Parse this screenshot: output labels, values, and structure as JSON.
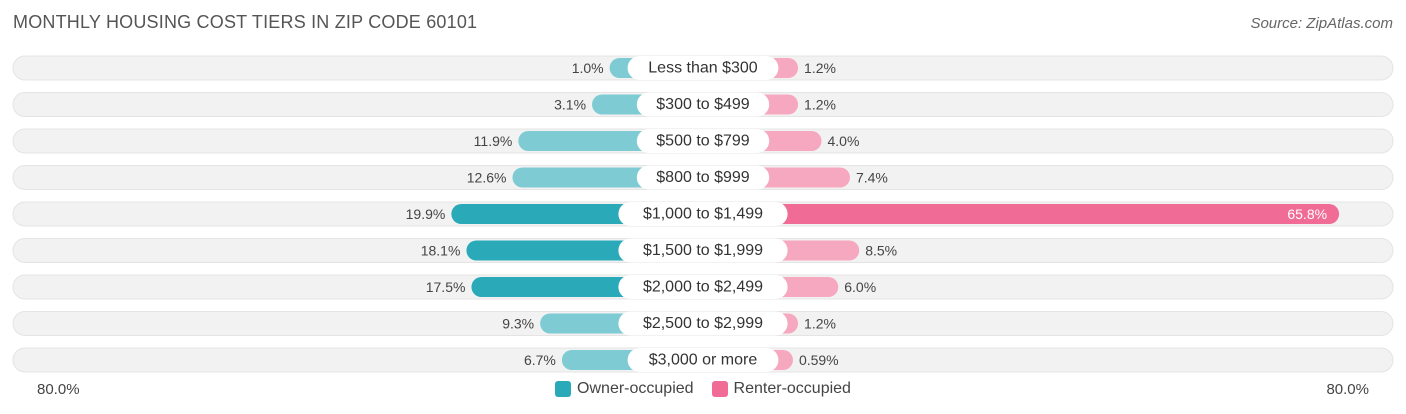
{
  "title": "MONTHLY HOUSING COST TIERS IN ZIP CODE 60101",
  "source": "Source: ZipAtlas.com",
  "colors": {
    "owner_dark": "#2aa9b9",
    "owner_light": "#7ecbd4",
    "renter_dark": "#f06b95",
    "renter_light": "#f6a8c0",
    "track": "#f2f2f2"
  },
  "chart_data": {
    "type": "bar",
    "orientation": "horizontal-diverging",
    "categories": [
      "Less than $300",
      "$300 to $499",
      "$500 to $799",
      "$800 to $999",
      "$1,000 to $1,499",
      "$1,500 to $1,999",
      "$2,000 to $2,499",
      "$2,500 to $2,999",
      "$3,000 or more"
    ],
    "series": [
      {
        "name": "Owner-occupied",
        "values": [
          1.0,
          3.1,
          11.9,
          12.6,
          19.9,
          18.1,
          17.5,
          9.3,
          6.7
        ],
        "labels": [
          "1.0%",
          "3.1%",
          "11.9%",
          "12.6%",
          "19.9%",
          "18.1%",
          "17.5%",
          "9.3%",
          "6.7%"
        ]
      },
      {
        "name": "Renter-occupied",
        "values": [
          1.2,
          1.2,
          4.0,
          7.4,
          65.8,
          8.5,
          6.0,
          1.2,
          0.59
        ],
        "labels": [
          "1.2%",
          "1.2%",
          "4.0%",
          "7.4%",
          "65.8%",
          "8.5%",
          "6.0%",
          "1.2%",
          "0.59%"
        ]
      }
    ],
    "xlim": [
      -80,
      80
    ],
    "axis_left_label": "80.0%",
    "axis_right_label": "80.0%",
    "legend_position": "bottom-center"
  }
}
